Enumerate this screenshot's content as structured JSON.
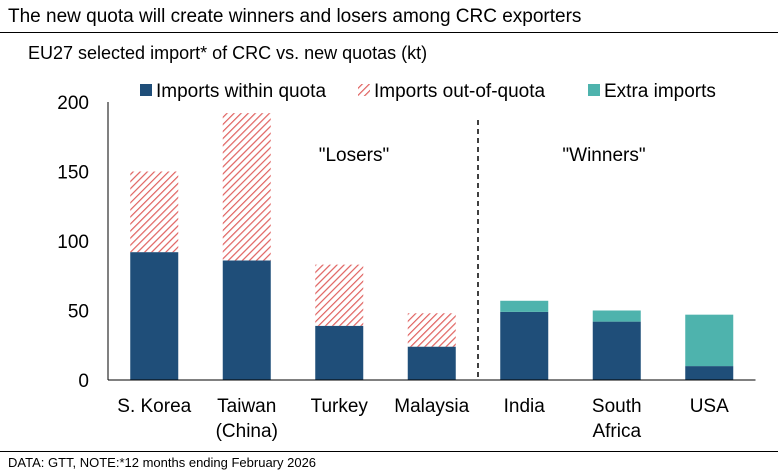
{
  "headline": "The new quota will create winners and losers among CRC exporters",
  "footer": "DATA: GTT, NOTE:*12 months ending February 2026",
  "colors": {
    "within": "#1f4e79",
    "outq": "#e0615f",
    "extra": "#4eb3ad"
  },
  "chart_data": {
    "type": "bar",
    "stacked": true,
    "title": "EU27 selected import* of CRC vs. new quotas (kt)",
    "xlabel": "",
    "ylabel": "",
    "ylim": [
      0,
      200
    ],
    "yticks": [
      0,
      50,
      100,
      150,
      200
    ],
    "grid": false,
    "legend_position": "top",
    "categories": [
      [
        "S. Korea"
      ],
      [
        "Taiwan",
        "(China)"
      ],
      [
        "Turkey"
      ],
      [
        "Malaysia"
      ],
      [
        "India"
      ],
      [
        "South",
        "Africa"
      ],
      [
        "USA"
      ]
    ],
    "series": [
      {
        "name": "Imports within quota",
        "key": "within",
        "values": [
          92,
          86,
          39,
          24,
          49,
          42,
          10
        ]
      },
      {
        "name": "Imports out-of-quota",
        "key": "outq",
        "values": [
          58,
          106,
          44,
          24,
          0,
          0,
          0
        ]
      },
      {
        "name": "Extra imports",
        "key": "extra",
        "values": [
          0,
          0,
          0,
          0,
          8,
          8,
          37
        ]
      }
    ],
    "annotations": [
      {
        "text": "\"Losers\"",
        "group": "losers"
      },
      {
        "text": "\"Winners\"",
        "group": "winners"
      }
    ]
  }
}
